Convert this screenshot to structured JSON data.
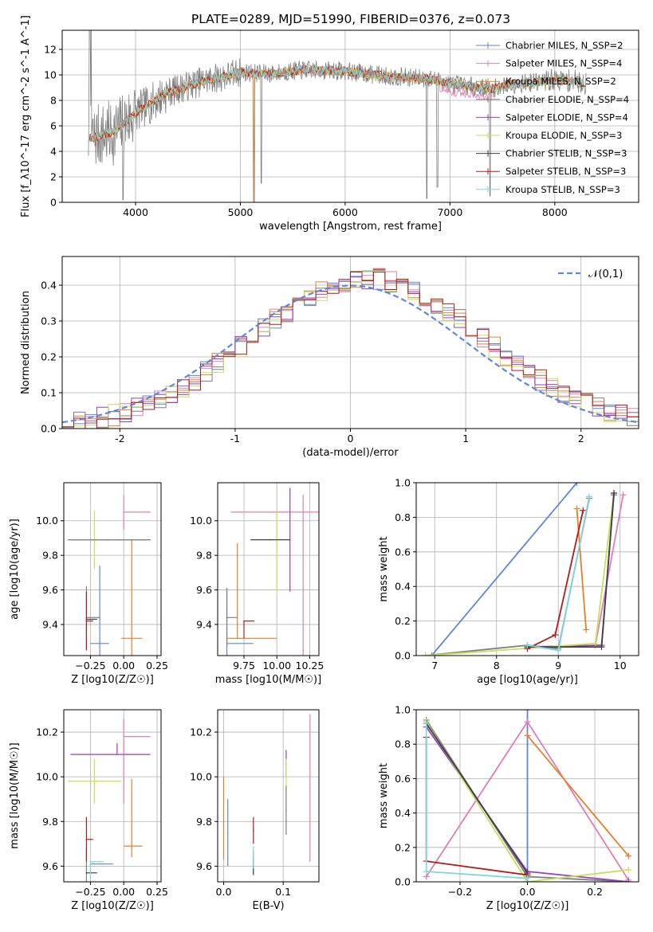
{
  "figure_title": "PLATE=0289, MJD=51990, FIBERID=0376, z=0.073",
  "series_colors": [
    "#5f87d6",
    "#e07db8",
    "#e3812a",
    "#7f7f7f",
    "#9a3fc2",
    "#c6e05a",
    "#404040",
    "#b01c1c",
    "#7ed6e0"
  ],
  "series_names": [
    "Chabrier MILES, N_SSP=2",
    "Salpeter MILES, N_SSP=4",
    "Kroupa MILES, N_SSP=2",
    "Chabrier ELODIE, N_SSP=4",
    "Salpeter ELODIE, N_SSP=4",
    "Kroupa ELODIE, N_SSP=3",
    "Chabrier STELIB, N_SSP=3",
    "Salpeter STELIB, N_SSP=3",
    "Kroupa STELIB, N_SSP=3"
  ],
  "chart_data": [
    {
      "id": "spectrum",
      "type": "line",
      "title": "PLATE=0289, MJD=51990, FIBERID=0376, z=0.073",
      "xlabel": "wavelength [Angstrom, rest frame]",
      "ylabel": "Flux [f_λ10^-17 erg cm^-2 s^-1 A^-1]",
      "xlim": [
        3300,
        8800
      ],
      "ylim": [
        0,
        13.5
      ],
      "xticks": [
        4000,
        5000,
        6000,
        7000,
        8000
      ],
      "yticks": [
        0,
        2,
        4,
        6,
        8,
        10,
        12
      ],
      "legend": "top-right",
      "data_color": "#808080",
      "continuum": {
        "x": [
          3550,
          3800,
          4000,
          4300,
          4600,
          5000,
          5300,
          5600,
          6000,
          6400,
          6800,
          7000,
          7200,
          7400,
          7600,
          7800,
          8000,
          8200,
          8300
        ],
        "y": [
          5.0,
          5.5,
          7.0,
          8.6,
          9.4,
          10.2,
          10.1,
          10.4,
          10.3,
          9.9,
          9.7,
          9.3,
          9.1,
          8.9,
          9.3,
          9.4,
          9.6,
          9.5,
          9.3
        ]
      }
    },
    {
      "id": "residuals",
      "type": "line",
      "xlabel": "(data-model)/error",
      "ylabel": "Normed distribution",
      "xlim": [
        -2.5,
        2.5
      ],
      "ylim": [
        0,
        0.48
      ],
      "xticks": [
        -2,
        -1,
        0,
        1,
        2
      ],
      "yticks": [
        0.0,
        0.1,
        0.2,
        0.3,
        0.4
      ],
      "legend_label": "𝒩(0,1)",
      "normal_color": "#5f87d6"
    },
    {
      "id": "age_vs_Z",
      "type": "scatter",
      "xlabel": "Z [log10(Z/Z☉)]",
      "ylabel": "age  [log10(age/yr)]",
      "xlim": [
        -0.45,
        0.28
      ],
      "ylim": [
        9.22,
        10.22
      ],
      "xticks": [
        -0.25,
        0.0,
        0.25
      ],
      "xticklabels": [
        "−0.25",
        "0.00",
        "0.25"
      ],
      "yticks": [
        9.4,
        9.6,
        9.8,
        10.0
      ],
      "points": [
        {
          "x": -0.18,
          "y": 9.29,
          "xerr": [
            0.07,
            0.07
          ],
          "yerr": [
            0.45,
            0.45
          ],
          "c": 0
        },
        {
          "x": 0.0,
          "y": 10.05,
          "xerr": [
            0.0,
            0.2
          ],
          "yerr": [
            0.1,
            0.1
          ],
          "c": 1
        },
        {
          "x": 0.06,
          "y": 9.32,
          "xerr": [
            0.08,
            0.08
          ],
          "yerr": [
            0.57,
            0.57
          ],
          "c": 2
        },
        {
          "x": -0.28,
          "y": 9.44,
          "xerr": [
            0.0,
            0.1
          ],
          "yerr": [
            0.18,
            0.18
          ],
          "c": 3
        },
        {
          "x": -0.05,
          "y": 9.89,
          "xerr": [
            0.35,
            0.25
          ],
          "yerr": [
            0.0,
            0.0
          ],
          "c": 4
        },
        {
          "x": -0.22,
          "y": 9.89,
          "xerr": [
            0.1,
            0.2
          ],
          "yerr": [
            0.17,
            0.17
          ],
          "c": 5
        },
        {
          "x": -0.28,
          "y": 9.43,
          "xerr": [
            0.0,
            0.08
          ],
          "yerr": [
            0.0,
            0.0
          ],
          "c": 6
        },
        {
          "x": -0.28,
          "y": 9.42,
          "xerr": [
            0.0,
            0.05
          ],
          "yerr": [
            0.17,
            0.17
          ],
          "c": 7
        },
        {
          "x": -0.12,
          "y": 9.89,
          "xerr": [
            0.3,
            0.3
          ],
          "yerr": [
            0.0,
            0.0
          ],
          "c": 3
        }
      ]
    },
    {
      "id": "age_vs_mass",
      "type": "scatter",
      "xlabel": "mass [log10(M/M☉)]",
      "ylabel": "",
      "xlim": [
        9.55,
        10.32
      ],
      "ylim": [
        9.22,
        10.22
      ],
      "xticks": [
        9.75,
        10.0,
        10.25
      ],
      "xticklabels": [
        "9.75",
        "10.00",
        "10.25"
      ],
      "yticks": [
        9.4,
        9.6,
        9.8,
        10.0
      ],
      "points": [
        {
          "x": 9.62,
          "y": 9.29,
          "xerr": [
            0.0,
            0.2
          ],
          "yerr": [
            0.32,
            0.32
          ],
          "c": 0
        },
        {
          "x": 10.2,
          "y": 9.25,
          "xerr": [
            0.0,
            0.0
          ],
          "yerr": [
            0.9,
            0.9
          ],
          "c": 1
        },
        {
          "x": 10.05,
          "y": 10.05,
          "xerr": [
            0.4,
            0.4
          ],
          "yerr": [
            0.0,
            0.0
          ],
          "c": 1
        },
        {
          "x": 9.7,
          "y": 9.32,
          "xerr": [
            0.08,
            0.3
          ],
          "yerr": [
            0.0,
            0.55
          ],
          "c": 2
        },
        {
          "x": 9.62,
          "y": 9.44,
          "xerr": [
            0.0,
            0.08
          ],
          "yerr": [
            0.17,
            0.17
          ],
          "c": 3
        },
        {
          "x": 10.1,
          "y": 9.89,
          "xerr": [
            0.0,
            0.0
          ],
          "yerr": [
            0.3,
            0.3
          ],
          "c": 4
        },
        {
          "x": 10.0,
          "y": 9.89,
          "xerr": [
            0.0,
            0.0
          ],
          "yerr": [
            0.3,
            0.17
          ],
          "c": 5
        },
        {
          "x": 9.75,
          "y": 9.42,
          "xerr": [
            0.0,
            0.08
          ],
          "yerr": [
            0.1,
            0.0
          ],
          "c": 7
        },
        {
          "x": 9.95,
          "y": 9.89,
          "xerr": [
            0.15,
            0.15
          ],
          "yerr": [
            0.0,
            0.0
          ],
          "c": 6
        }
      ]
    },
    {
      "id": "massweight_vs_age",
      "type": "line",
      "xlabel": "age  [log10(age/yr)]",
      "ylabel": "mass weight",
      "xlim": [
        6.7,
        10.3
      ],
      "ylim": [
        0,
        1.0
      ],
      "xticks": [
        7,
        8,
        9,
        10
      ],
      "yticks": [
        0.0,
        0.2,
        0.4,
        0.6,
        0.8,
        1.0
      ],
      "series": [
        {
          "c": 0,
          "x": [
            6.95,
            9.3
          ],
          "y": [
            0.0,
            1.0
          ]
        },
        {
          "c": 1,
          "x": [
            9.6,
            10.05
          ],
          "y": [
            0.06,
            0.93
          ]
        },
        {
          "c": 2,
          "x": [
            9.3,
            9.45
          ],
          "y": [
            0.85,
            0.15
          ]
        },
        {
          "c": 3,
          "x": [
            6.85,
            8.5,
            9.0,
            9.5
          ],
          "y": [
            0.0,
            0.06,
            0.04,
            0.91
          ]
        },
        {
          "c": 4,
          "x": [
            8.5,
            9.7,
            9.9
          ],
          "y": [
            0.05,
            0.06,
            0.93
          ]
        },
        {
          "c": 5,
          "x": [
            6.85,
            9.6,
            9.9
          ],
          "y": [
            0.0,
            0.07,
            0.94
          ]
        },
        {
          "c": 6,
          "x": [
            8.5,
            9.7,
            9.9
          ],
          "y": [
            0.05,
            0.05,
            0.94
          ]
        },
        {
          "c": 7,
          "x": [
            8.5,
            8.95,
            9.4
          ],
          "y": [
            0.04,
            0.12,
            0.84
          ]
        },
        {
          "c": 8,
          "x": [
            8.5,
            9.0,
            9.5
          ],
          "y": [
            0.06,
            0.03,
            0.92
          ]
        }
      ]
    },
    {
      "id": "mass_vs_Z",
      "type": "scatter",
      "xlabel": "Z [log10(Z/Z☉)]",
      "ylabel": "mass [log10(M/M☉)]",
      "xlim": [
        -0.45,
        0.28
      ],
      "ylim": [
        9.53,
        10.3
      ],
      "xticks": [
        -0.25,
        0.0,
        0.25
      ],
      "xticklabels": [
        "−0.25",
        "0.00",
        "0.25"
      ],
      "yticks": [
        9.6,
        9.8,
        10.0,
        10.2
      ],
      "points": [
        {
          "x": -0.18,
          "y": 9.61,
          "xerr": [
            0.07,
            0.1
          ],
          "yerr": [
            0.0,
            0.0
          ],
          "c": 0
        },
        {
          "x": 0.0,
          "y": 10.18,
          "xerr": [
            0.0,
            0.2
          ],
          "yerr": [
            0.3,
            0.08
          ],
          "c": 1
        },
        {
          "x": 0.06,
          "y": 9.69,
          "xerr": [
            0.06,
            0.08
          ],
          "yerr": [
            0.05,
            0.3
          ],
          "c": 2
        },
        {
          "x": -0.28,
          "y": 9.6,
          "xerr": [
            0.0,
            0.0
          ],
          "yerr": [
            0.08,
            0.08
          ],
          "c": 3
        },
        {
          "x": -0.05,
          "y": 10.1,
          "xerr": [
            0.35,
            0.25
          ],
          "yerr": [
            0.0,
            0.05
          ],
          "c": 4
        },
        {
          "x": -0.22,
          "y": 9.98,
          "xerr": [
            0.2,
            0.2
          ],
          "yerr": [
            0.1,
            0.1
          ],
          "c": 5
        },
        {
          "x": -0.28,
          "y": 9.57,
          "xerr": [
            0.0,
            0.08
          ],
          "yerr": [
            0.0,
            0.0
          ],
          "c": 6
        },
        {
          "x": -0.28,
          "y": 9.72,
          "xerr": [
            0.0,
            0.05
          ],
          "yerr": [
            0.1,
            0.1
          ],
          "c": 7
        },
        {
          "x": -0.25,
          "y": 9.62,
          "xerr": [
            0.0,
            0.1
          ],
          "yerr": [
            0.08,
            0.0
          ],
          "c": 8
        }
      ]
    },
    {
      "id": "mass_vs_ebv",
      "type": "scatter",
      "xlabel": "E(B-V)",
      "ylabel": "",
      "xlim": [
        -0.01,
        0.16
      ],
      "ylim": [
        9.53,
        10.3
      ],
      "xticks": [
        0.0,
        0.1
      ],
      "xticklabels": [
        "0.0",
        "0.1"
      ],
      "yticks": [
        9.6,
        9.8,
        10.0,
        10.2
      ],
      "points": [
        {
          "x": 0.007,
          "y": 9.75,
          "xerr": [
            0,
            0
          ],
          "yerr": [
            0.15,
            0.15
          ],
          "c": 0
        },
        {
          "x": 0.145,
          "y": 9.95,
          "xerr": [
            0,
            0
          ],
          "yerr": [
            0.33,
            0.33
          ],
          "c": 1
        },
        {
          "x": 0.0,
          "y": 9.8,
          "xerr": [
            0,
            0
          ],
          "yerr": [
            0.17,
            0.2
          ],
          "c": 2
        },
        {
          "x": 0.05,
          "y": 9.62,
          "xerr": [
            0,
            0
          ],
          "yerr": [
            0.05,
            0.05
          ],
          "c": 3
        },
        {
          "x": 0.105,
          "y": 10.06,
          "xerr": [
            0,
            0
          ],
          "yerr": [
            0.06,
            0.06
          ],
          "c": 4
        },
        {
          "x": 0.105,
          "y": 9.96,
          "xerr": [
            0,
            0
          ],
          "yerr": [
            0.12,
            0.12
          ],
          "c": 5
        },
        {
          "x": 0.05,
          "y": 9.6,
          "xerr": [
            0,
            0
          ],
          "yerr": [
            0.04,
            0.04
          ],
          "c": 6
        },
        {
          "x": 0.05,
          "y": 9.76,
          "xerr": [
            0,
            0
          ],
          "yerr": [
            0.06,
            0.06
          ],
          "c": 7
        },
        {
          "x": 0.05,
          "y": 9.64,
          "xerr": [
            0,
            0
          ],
          "yerr": [
            0.05,
            0.05
          ],
          "c": 8
        },
        {
          "x": 0.105,
          "y": 9.85,
          "xerr": [
            0,
            0
          ],
          "yerr": [
            0.11,
            0.11
          ],
          "c": 3
        }
      ]
    },
    {
      "id": "massweight_vs_Z",
      "type": "line",
      "xlabel": "Z [log10(Z/Z☉)]",
      "ylabel": "mass weight",
      "xlim": [
        -0.33,
        0.33
      ],
      "ylim": [
        0,
        1.0
      ],
      "xticks": [
        -0.2,
        0.0,
        0.2
      ],
      "xticklabels": [
        "−0.2",
        "0.0",
        "0.2"
      ],
      "yticks": [
        0.0,
        0.2,
        0.4,
        0.6,
        0.8,
        1.0
      ],
      "series": [
        {
          "c": 0,
          "x": [
            0.0,
            0.0
          ],
          "y": [
            0.0,
            1.0
          ]
        },
        {
          "c": 1,
          "x": [
            -0.3,
            0.0,
            0.3
          ],
          "y": [
            0.03,
            0.93,
            0.01
          ]
        },
        {
          "c": 2,
          "x": [
            0.0,
            0.3
          ],
          "y": [
            0.85,
            0.15
          ]
        },
        {
          "c": 3,
          "x": [
            -0.3,
            0.0,
            0.3
          ],
          "y": [
            0.94,
            0.03,
            0.0
          ]
        },
        {
          "c": 4,
          "x": [
            -0.3,
            0.0,
            0.3
          ],
          "y": [
            0.9,
            0.06,
            0.0
          ]
        },
        {
          "c": 5,
          "x": [
            -0.3,
            0.0,
            0.3
          ],
          "y": [
            0.93,
            0.0,
            0.07
          ]
        },
        {
          "c": 6,
          "x": [
            -0.3,
            0.0
          ],
          "y": [
            0.92,
            0.05
          ]
        },
        {
          "c": 7,
          "x": [
            -0.3,
            -0.3,
            0.0
          ],
          "y": [
            0.84,
            0.12,
            0.04
          ]
        },
        {
          "c": 8,
          "x": [
            -0.3,
            -0.3,
            0.0
          ],
          "y": [
            0.92,
            0.06,
            0.02
          ]
        }
      ]
    }
  ]
}
